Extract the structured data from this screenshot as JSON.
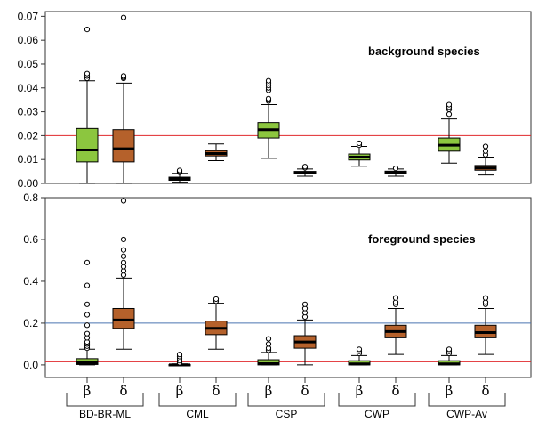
{
  "colors": {
    "beta": "#8cc63f",
    "delta": "#b5612b",
    "redline": "#e0282b",
    "blueline": "#4a74b0",
    "median": "#000000"
  },
  "chart_data": [
    {
      "type": "box",
      "title": "background species",
      "ylim": [
        0,
        0.072
      ],
      "yticks": [
        "0.00",
        "0.01",
        "0.02",
        "0.03",
        "0.04",
        "0.05",
        "0.06",
        "0.07"
      ],
      "hlines": [
        {
          "y": 0.02,
          "color": "redline"
        }
      ],
      "groups": [
        "BD-BR-ML",
        "CML",
        "CSP",
        "CWP",
        "CWP-Av"
      ],
      "series": [
        {
          "name": "β",
          "colorKey": "beta",
          "boxes": [
            {
              "low": 0.0,
              "q1": 0.009,
              "median": 0.014,
              "q3": 0.023,
              "high": 0.043,
              "outliers": [
                0.044,
                0.045,
                0.046,
                0.0645
              ]
            },
            {
              "low": 0.0005,
              "q1": 0.0013,
              "median": 0.002,
              "q3": 0.0026,
              "high": 0.0042,
              "outliers": [
                0.0046,
                0.005,
                0.0054
              ]
            },
            {
              "low": 0.0105,
              "q1": 0.019,
              "median": 0.0225,
              "q3": 0.0255,
              "high": 0.033,
              "outliers": [
                0.0345,
                0.035,
                0.0355,
                0.039,
                0.04,
                0.041,
                0.042,
                0.043
              ]
            },
            {
              "low": 0.0072,
              "q1": 0.0098,
              "median": 0.011,
              "q3": 0.0123,
              "high": 0.0155,
              "outliers": [
                0.016,
                0.0168
              ]
            },
            {
              "low": 0.0085,
              "q1": 0.0135,
              "median": 0.016,
              "q3": 0.019,
              "high": 0.027,
              "outliers": [
                0.029,
                0.031,
                0.032,
                0.033
              ]
            }
          ]
        },
        {
          "name": "δ",
          "colorKey": "delta",
          "boxes": [
            {
              "low": 0.0,
              "q1": 0.009,
              "median": 0.0145,
              "q3": 0.0225,
              "high": 0.042,
              "outliers": [
                0.044,
                0.0445,
                0.045,
                0.0695
              ]
            },
            {
              "low": 0.0095,
              "q1": 0.0115,
              "median": 0.0125,
              "q3": 0.0137,
              "high": 0.0165,
              "outliers": []
            },
            {
              "low": 0.003,
              "q1": 0.004,
              "median": 0.0045,
              "q3": 0.005,
              "high": 0.006,
              "outliers": [
                0.0065,
                0.007
              ]
            },
            {
              "low": 0.003,
              "q1": 0.004,
              "median": 0.0045,
              "q3": 0.0051,
              "high": 0.006,
              "outliers": [
                0.0063
              ]
            },
            {
              "low": 0.0035,
              "q1": 0.0055,
              "median": 0.0065,
              "q3": 0.0075,
              "high": 0.011,
              "outliers": [
                0.012,
                0.0135,
                0.0155
              ]
            }
          ]
        }
      ]
    },
    {
      "type": "box",
      "title": "foreground species",
      "ylim": [
        -0.06,
        0.8
      ],
      "yticks": [
        "0.0",
        "0.2",
        "0.4",
        "0.6",
        "0.8"
      ],
      "hlines": [
        {
          "y": 0.2,
          "color": "blueline"
        },
        {
          "y": 0.015,
          "color": "redline"
        }
      ],
      "groups": [
        "BD-BR-ML",
        "CML",
        "CSP",
        "CWP",
        "CWP-Av"
      ],
      "series": [
        {
          "name": "β",
          "colorKey": "beta",
          "boxes": [
            {
              "low": 0.0,
              "q1": 0.002,
              "median": 0.01,
              "q3": 0.03,
              "high": 0.075,
              "outliers": [
                0.08,
                0.09,
                0.1,
                0.11,
                0.13,
                0.15,
                0.19,
                0.24,
                0.29,
                0.38,
                0.49
              ]
            },
            {
              "low": 0.0,
              "q1": 0.0,
              "median": 0.0,
              "q3": 0.002,
              "high": 0.005,
              "outliers": [
                0.01,
                0.02,
                0.03,
                0.04,
                0.05
              ]
            },
            {
              "low": 0.0,
              "q1": 0.0,
              "median": 0.006,
              "q3": 0.025,
              "high": 0.06,
              "outliers": [
                0.07,
                0.08,
                0.1,
                0.125
              ]
            },
            {
              "low": 0.0,
              "q1": 0.0,
              "median": 0.005,
              "q3": 0.02,
              "high": 0.045,
              "outliers": [
                0.055,
                0.065,
                0.075
              ]
            },
            {
              "low": 0.0,
              "q1": 0.0,
              "median": 0.005,
              "q3": 0.02,
              "high": 0.045,
              "outliers": [
                0.055,
                0.065,
                0.075
              ]
            }
          ]
        },
        {
          "name": "δ",
          "colorKey": "delta",
          "boxes": [
            {
              "low": 0.075,
              "q1": 0.175,
              "median": 0.215,
              "q3": 0.27,
              "high": 0.415,
              "outliers": [
                0.43,
                0.45,
                0.47,
                0.49,
                0.52,
                0.55,
                0.6,
                0.785
              ]
            },
            {
              "low": 0.075,
              "q1": 0.145,
              "median": 0.175,
              "q3": 0.21,
              "high": 0.295,
              "outliers": [
                0.305,
                0.315
              ]
            },
            {
              "low": 0.0,
              "q1": 0.08,
              "median": 0.11,
              "q3": 0.14,
              "high": 0.215,
              "outliers": [
                0.23,
                0.25,
                0.27,
                0.29
              ]
            },
            {
              "low": 0.05,
              "q1": 0.13,
              "median": 0.16,
              "q3": 0.19,
              "high": 0.27,
              "outliers": [
                0.29,
                0.3,
                0.32
              ]
            },
            {
              "low": 0.05,
              "q1": 0.13,
              "median": 0.155,
              "q3": 0.19,
              "high": 0.27,
              "outliers": [
                0.29,
                0.3,
                0.32
              ]
            }
          ]
        }
      ]
    }
  ]
}
